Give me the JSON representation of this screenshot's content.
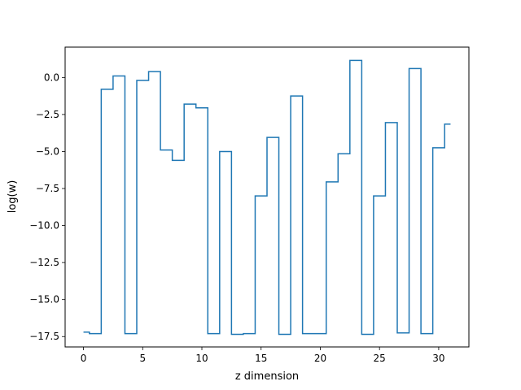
{
  "chart_data": {
    "type": "line",
    "drawstyle": "steps-mid",
    "xlabel": "z dimension",
    "ylabel": "log(w)",
    "xlim": [
      -1.55,
      32.55
    ],
    "ylim": [
      -18.2,
      2.05
    ],
    "xticks": [
      0,
      5,
      10,
      15,
      20,
      25,
      30
    ],
    "yticks": [
      0.0,
      -2.5,
      -5.0,
      -7.5,
      -10.0,
      -12.5,
      -15.0,
      -17.5
    ],
    "ytick_labels": [
      "0.0",
      "−2.5",
      "−5.0",
      "−7.5",
      "−10.0",
      "−12.5",
      "−15.0",
      "−17.5"
    ],
    "grid": false,
    "series": [
      {
        "color": "#1f77b4",
        "x": [
          0,
          1,
          2,
          3,
          4,
          5,
          6,
          7,
          8,
          9,
          10,
          11,
          12,
          13,
          14,
          15,
          16,
          17,
          18,
          19,
          20,
          21,
          22,
          23,
          24,
          25,
          26,
          27,
          28,
          29,
          30,
          31
        ],
        "values": [
          -17.2,
          -17.3,
          -0.8,
          0.1,
          -17.3,
          -0.2,
          0.4,
          -4.9,
          -5.6,
          -1.8,
          -2.05,
          -17.3,
          -5.0,
          -17.35,
          -17.3,
          -8.0,
          -4.05,
          -17.35,
          -1.25,
          -17.3,
          -17.3,
          -7.05,
          -5.15,
          1.15,
          -17.35,
          -8.0,
          -3.05,
          -17.25,
          0.6,
          -17.3,
          -4.75,
          -3.15
        ]
      }
    ]
  }
}
